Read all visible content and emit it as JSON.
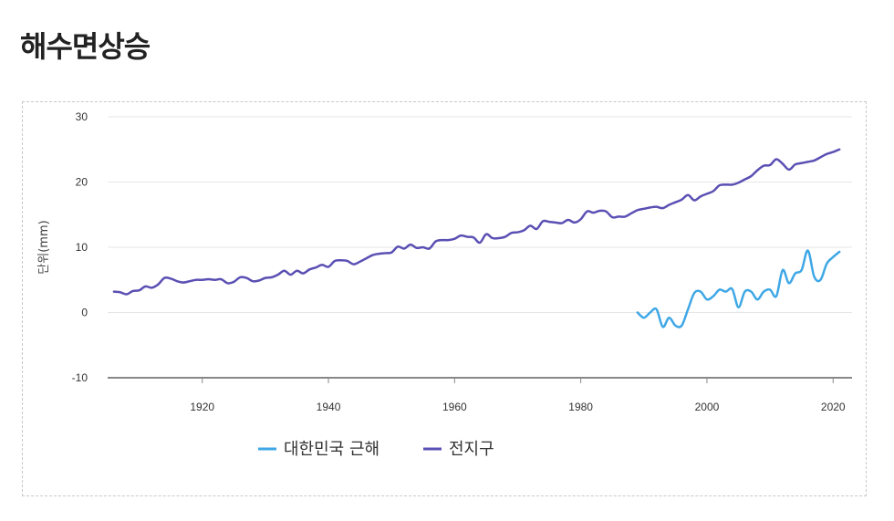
{
  "page": {
    "title": "해수면상승"
  },
  "chart_data": {
    "type": "line",
    "title": "",
    "ylabel": "단위(mm)",
    "xlabel": "",
    "xlim": [
      1905,
      2023
    ],
    "ylim": [
      -10,
      30
    ],
    "x_ticks": [
      1920,
      1940,
      1960,
      1980,
      2000,
      2020
    ],
    "y_ticks": [
      -10,
      0,
      10,
      20,
      30
    ],
    "grid": "horizontal",
    "legend_position": "bottom-left",
    "series": [
      {
        "name": "대한민국 근해",
        "color": "#3ea7e6",
        "x": [
          1989,
          1990,
          1991,
          1992,
          1993,
          1994,
          1995,
          1996,
          1997,
          1998,
          1999,
          2000,
          2001,
          2002,
          2003,
          2004,
          2005,
          2006,
          2007,
          2008,
          2009,
          2010,
          2011,
          2012,
          2013,
          2014,
          2015,
          2016,
          2017,
          2018,
          2019,
          2020,
          2021
        ],
        "y": [
          0.0,
          -0.8,
          0.0,
          0.5,
          -2.2,
          -0.8,
          -2.0,
          -2.0,
          0.5,
          3.0,
          3.2,
          2.0,
          2.5,
          3.5,
          3.2,
          3.6,
          0.8,
          3.2,
          3.2,
          2.0,
          3.2,
          3.5,
          2.5,
          6.5,
          4.5,
          6.0,
          6.5,
          9.5,
          5.5,
          5.0,
          7.5,
          8.5,
          9.3
        ]
      },
      {
        "name": "전지구",
        "color": "#5a4fb3",
        "x": [
          1906,
          1907,
          1908,
          1909,
          1910,
          1911,
          1912,
          1913,
          1914,
          1915,
          1916,
          1917,
          1918,
          1919,
          1920,
          1921,
          1922,
          1923,
          1924,
          1925,
          1926,
          1927,
          1928,
          1929,
          1930,
          1931,
          1932,
          1933,
          1934,
          1935,
          1936,
          1937,
          1938,
          1939,
          1940,
          1941,
          1942,
          1943,
          1944,
          1945,
          1946,
          1947,
          1948,
          1949,
          1950,
          1951,
          1952,
          1953,
          1954,
          1955,
          1956,
          1957,
          1958,
          1959,
          1960,
          1961,
          1962,
          1963,
          1964,
          1965,
          1966,
          1967,
          1968,
          1969,
          1970,
          1971,
          1972,
          1973,
          1974,
          1975,
          1976,
          1977,
          1978,
          1979,
          1980,
          1981,
          1982,
          1983,
          1984,
          1985,
          1986,
          1987,
          1988,
          1989,
          1990,
          1991,
          1992,
          1993,
          1994,
          1995,
          1996,
          1997,
          1998,
          1999,
          2000,
          2001,
          2002,
          2003,
          2004,
          2005,
          2006,
          2007,
          2008,
          2009,
          2010,
          2011,
          2012,
          2013,
          2014,
          2015,
          2016,
          2017,
          2018,
          2019,
          2020,
          2021
        ],
        "y": [
          3.2,
          3.1,
          2.8,
          3.3,
          3.4,
          4.0,
          3.8,
          4.3,
          5.3,
          5.2,
          4.8,
          4.6,
          4.8,
          5.0,
          5.0,
          5.1,
          5.0,
          5.1,
          4.5,
          4.7,
          5.4,
          5.3,
          4.8,
          4.9,
          5.3,
          5.4,
          5.8,
          6.4,
          5.8,
          6.4,
          6.0,
          6.6,
          6.9,
          7.3,
          7.0,
          7.9,
          8.0,
          7.9,
          7.4,
          7.8,
          8.3,
          8.8,
          9.0,
          9.1,
          9.2,
          10.1,
          9.8,
          10.4,
          9.9,
          10.0,
          9.8,
          10.9,
          11.1,
          11.1,
          11.3,
          11.8,
          11.6,
          11.5,
          10.7,
          12.0,
          11.4,
          11.4,
          11.6,
          12.2,
          12.3,
          12.6,
          13.3,
          12.8,
          14.0,
          13.9,
          13.8,
          13.7,
          14.2,
          13.8,
          14.3,
          15.5,
          15.3,
          15.6,
          15.5,
          14.6,
          14.7,
          14.7,
          15.2,
          15.7,
          15.9,
          16.1,
          16.2,
          16.0,
          16.5,
          16.9,
          17.3,
          18.0,
          17.2,
          17.8,
          18.2,
          18.6,
          19.5,
          19.6,
          19.6,
          19.9,
          20.4,
          20.9,
          21.8,
          22.5,
          22.6,
          23.5,
          22.8,
          21.9,
          22.7,
          22.9,
          23.1,
          23.3,
          23.8,
          24.3,
          24.6,
          25.0
        ]
      }
    ]
  }
}
